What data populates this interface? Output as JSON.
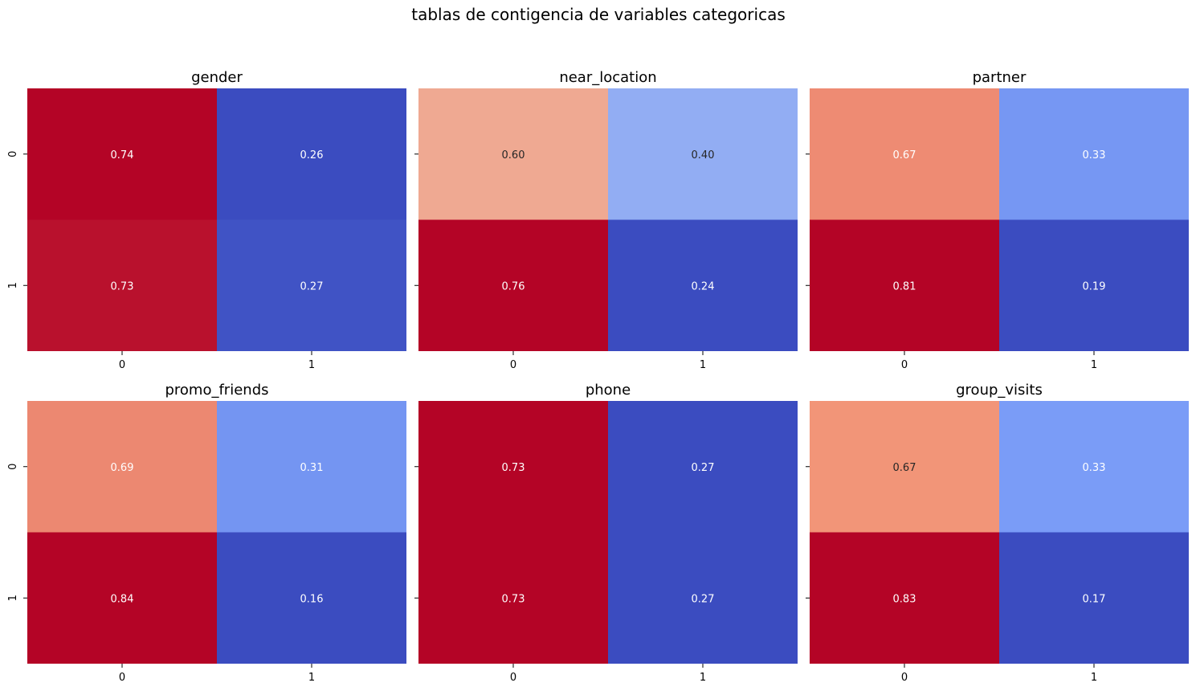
{
  "figure": {
    "suptitle": "tablas de contigencia de variables categoricas"
  },
  "chart_data": [
    {
      "type": "heatmap",
      "title": "gender",
      "x_categories": [
        "0",
        "1"
      ],
      "y_categories": [
        "0",
        "1"
      ],
      "values": [
        [
          0.74,
          0.26
        ],
        [
          0.73,
          0.27
        ]
      ],
      "colormap": "coolwarm",
      "colorbar": false,
      "annotation_format": "0.00"
    },
    {
      "type": "heatmap",
      "title": "near_location",
      "x_categories": [
        "0",
        "1"
      ],
      "y_categories": [
        "0",
        "1"
      ],
      "values": [
        [
          0.6,
          0.4
        ],
        [
          0.76,
          0.24
        ]
      ],
      "colormap": "coolwarm",
      "colorbar": false,
      "annotation_format": "0.00"
    },
    {
      "type": "heatmap",
      "title": "partner",
      "x_categories": [
        "0",
        "1"
      ],
      "y_categories": [
        "0",
        "1"
      ],
      "values": [
        [
          0.67,
          0.33
        ],
        [
          0.81,
          0.19
        ]
      ],
      "colormap": "coolwarm",
      "colorbar": false,
      "annotation_format": "0.00"
    },
    {
      "type": "heatmap",
      "title": "promo_friends",
      "x_categories": [
        "0",
        "1"
      ],
      "y_categories": [
        "0",
        "1"
      ],
      "values": [
        [
          0.69,
          0.31
        ],
        [
          0.84,
          0.16
        ]
      ],
      "colormap": "coolwarm",
      "colorbar": false,
      "annotation_format": "0.00"
    },
    {
      "type": "heatmap",
      "title": "phone",
      "x_categories": [
        "0",
        "1"
      ],
      "y_categories": [
        "0",
        "1"
      ],
      "values": [
        [
          0.73,
          0.27
        ],
        [
          0.73,
          0.27
        ]
      ],
      "colormap": "coolwarm",
      "colorbar": false,
      "annotation_format": "0.00"
    },
    {
      "type": "heatmap",
      "title": "group_visits",
      "x_categories": [
        "0",
        "1"
      ],
      "y_categories": [
        "0",
        "1"
      ],
      "values": [
        [
          0.67,
          0.33
        ],
        [
          0.83,
          0.17
        ]
      ],
      "colormap": "coolwarm",
      "colorbar": false,
      "annotation_format": "0.00"
    }
  ],
  "colors": {
    "high": "#b40426",
    "low": "#3b4cc0",
    "background": "#ffffff",
    "text_dark": "#262626",
    "text_light": "#ffffff"
  }
}
